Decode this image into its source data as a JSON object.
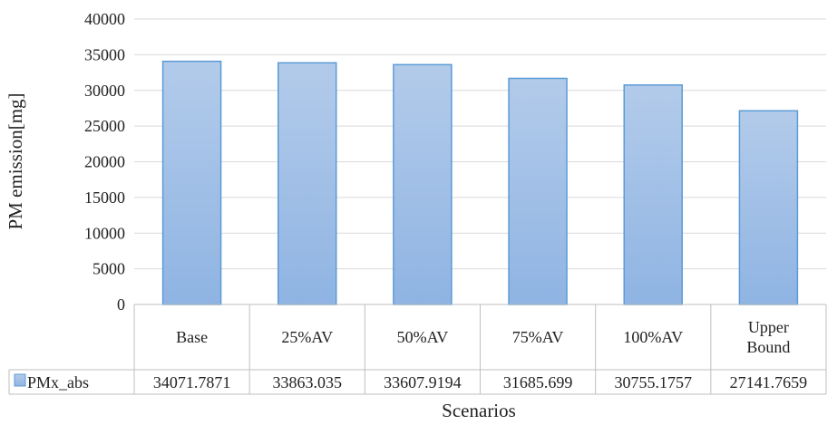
{
  "chart_data": {
    "type": "bar",
    "categories": [
      [
        "Base"
      ],
      [
        "25%AV"
      ],
      [
        "50%AV"
      ],
      [
        "75%AV"
      ],
      [
        "100%AV"
      ],
      [
        "Upper",
        "Bound"
      ]
    ],
    "series": [
      {
        "name": "PMx_abs",
        "values": [
          34071.7871,
          33863.035,
          33607.9194,
          31685.699,
          30755.1757,
          27141.7659
        ],
        "value_labels": [
          "34071.7871",
          "33863.035",
          "33607.9194",
          "31685.699",
          "30755.1757",
          "27141.7659"
        ]
      }
    ],
    "xlabel": "Scenarios",
    "ylabel": "PM emission[mg]",
    "ylim": [
      0,
      40000
    ],
    "yticks": [
      0,
      5000,
      10000,
      15000,
      20000,
      25000,
      30000,
      35000,
      40000
    ],
    "grid": true,
    "legend": "data-table",
    "colors": {
      "bar_top": "#b3cbea",
      "bar_bottom": "#8fb4e3",
      "bar_border": "#5b9bd5",
      "grid": "#d9d9d9",
      "table_border": "#bfbfbf"
    }
  }
}
